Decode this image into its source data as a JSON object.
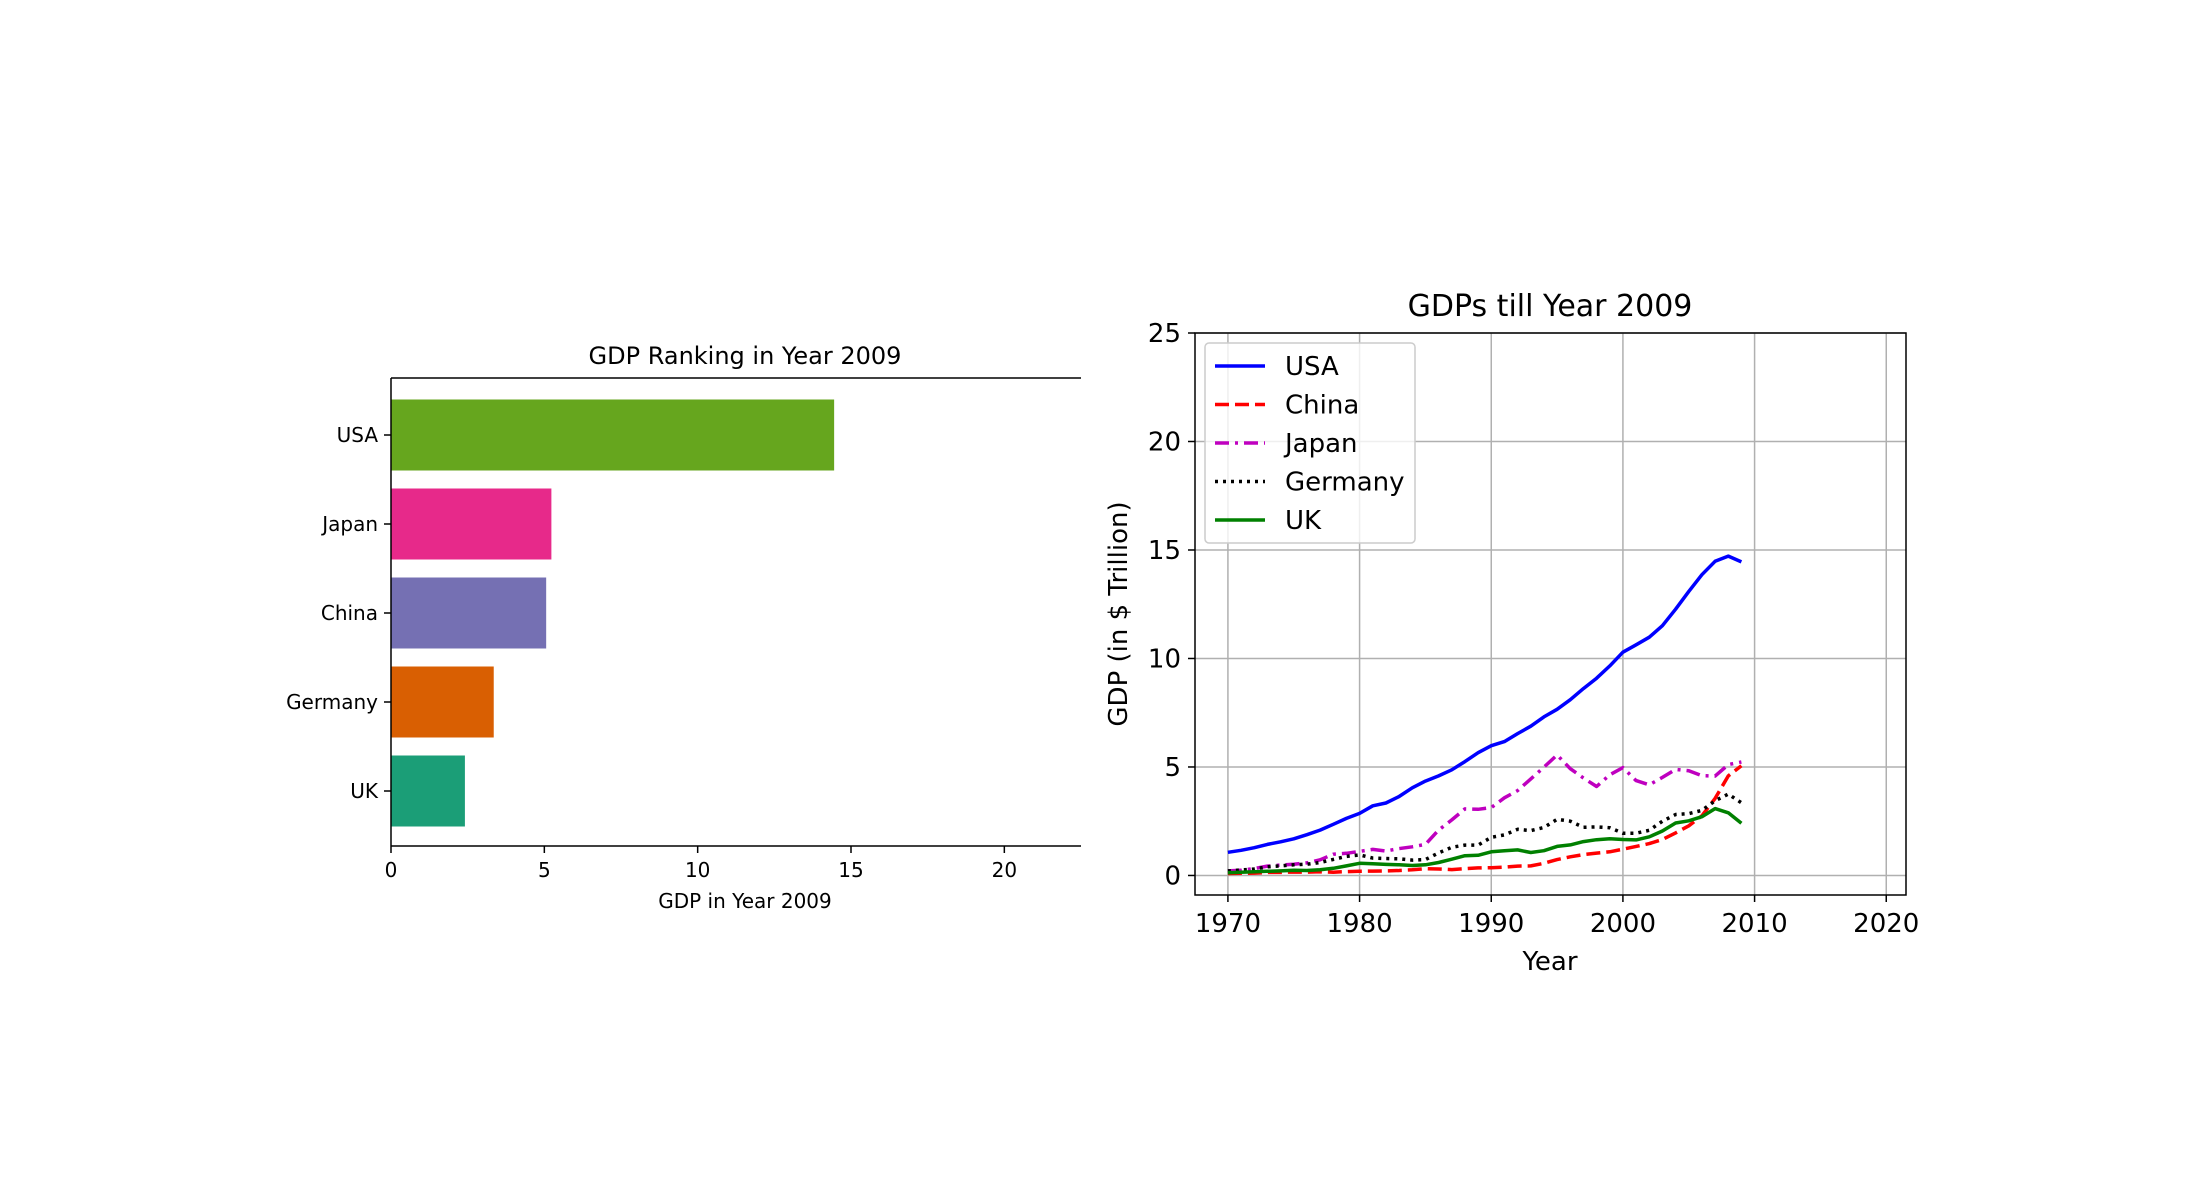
{
  "chart_data": [
    {
      "type": "bar",
      "orientation": "horizontal",
      "title": "GDP Ranking in Year 2009",
      "xlabel": "GDP in Year 2009",
      "ylabel": "",
      "categories": [
        "USA",
        "Japan",
        "China",
        "Germany",
        "UK"
      ],
      "values": [
        14.45,
        5.23,
        5.06,
        3.35,
        2.41
      ],
      "colors": [
        "#66a61e",
        "#e7298a",
        "#7570b3",
        "#d95f02",
        "#1b9e77"
      ],
      "xlim": [
        0,
        22.5
      ],
      "xticks": [
        "0",
        "5",
        "10",
        "15",
        "20"
      ],
      "grid": false
    },
    {
      "type": "line",
      "title": "GDPs till Year 2009",
      "xlabel": "Year",
      "ylabel": "GDP (in $ Trillion)",
      "xlim": [
        1967.5,
        2021.5
      ],
      "ylim": [
        -0.9,
        25
      ],
      "xticks": [
        "1970",
        "1980",
        "1990",
        "2000",
        "2010",
        "2020"
      ],
      "yticks": [
        "0",
        "5",
        "10",
        "15",
        "20",
        "25"
      ],
      "grid": true,
      "legend_position": "top-left",
      "x": [
        1970,
        1971,
        1972,
        1973,
        1974,
        1975,
        1976,
        1977,
        1978,
        1979,
        1980,
        1981,
        1982,
        1983,
        1984,
        1985,
        1986,
        1987,
        1988,
        1989,
        1990,
        1991,
        1992,
        1993,
        1994,
        1995,
        1996,
        1997,
        1998,
        1999,
        2000,
        2001,
        2002,
        2003,
        2004,
        2005,
        2006,
        2007,
        2008,
        2009
      ],
      "series": [
        {
          "name": "USA",
          "color": "#0000ff",
          "dash": "solid",
          "values": [
            1.07,
            1.16,
            1.28,
            1.43,
            1.55,
            1.69,
            1.88,
            2.09,
            2.36,
            2.63,
            2.86,
            3.21,
            3.34,
            3.64,
            4.04,
            4.35,
            4.59,
            4.87,
            5.25,
            5.66,
            5.98,
            6.17,
            6.54,
            6.88,
            7.31,
            7.66,
            8.1,
            8.61,
            9.09,
            9.66,
            10.29,
            10.63,
            10.98,
            11.51,
            12.27,
            13.09,
            13.86,
            14.48,
            14.72,
            14.45
          ]
        },
        {
          "name": "China",
          "color": "#ff0000",
          "dash": "dashed",
          "values": [
            0.09,
            0.1,
            0.11,
            0.14,
            0.14,
            0.16,
            0.15,
            0.17,
            0.15,
            0.18,
            0.19,
            0.2,
            0.21,
            0.23,
            0.26,
            0.31,
            0.3,
            0.27,
            0.31,
            0.35,
            0.36,
            0.38,
            0.43,
            0.44,
            0.56,
            0.73,
            0.86,
            0.96,
            1.03,
            1.09,
            1.21,
            1.34,
            1.47,
            1.66,
            1.96,
            2.29,
            2.75,
            3.55,
            4.59,
            5.06
          ]
        },
        {
          "name": "Japan",
          "color": "#bf00bf",
          "dash": "dashdot",
          "values": [
            0.21,
            0.24,
            0.32,
            0.43,
            0.48,
            0.52,
            0.58,
            0.72,
            0.98,
            1.02,
            1.11,
            1.2,
            1.13,
            1.24,
            1.32,
            1.43,
            2.09,
            2.56,
            3.07,
            3.05,
            3.13,
            3.58,
            3.91,
            4.45,
            4.99,
            5.55,
            4.92,
            4.49,
            4.1,
            4.64,
            4.97,
            4.37,
            4.18,
            4.52,
            4.89,
            4.83,
            4.6,
            4.58,
            5.11,
            5.23
          ]
        },
        {
          "name": "Germany",
          "color": "#000000",
          "dash": "dotted",
          "values": [
            0.21,
            0.25,
            0.3,
            0.4,
            0.44,
            0.49,
            0.52,
            0.6,
            0.74,
            0.88,
            0.95,
            0.8,
            0.78,
            0.77,
            0.71,
            0.73,
            1.04,
            1.3,
            1.4,
            1.4,
            1.76,
            1.87,
            2.13,
            2.07,
            2.21,
            2.59,
            2.5,
            2.22,
            2.24,
            2.2,
            1.95,
            1.95,
            2.08,
            2.5,
            2.81,
            2.85,
            3.0,
            3.44,
            3.75,
            3.35
          ]
        },
        {
          "name": "UK",
          "color": "#008000",
          "dash": "solid",
          "values": [
            0.13,
            0.15,
            0.17,
            0.19,
            0.21,
            0.24,
            0.23,
            0.26,
            0.33,
            0.44,
            0.56,
            0.54,
            0.51,
            0.49,
            0.46,
            0.49,
            0.6,
            0.75,
            0.91,
            0.93,
            1.09,
            1.14,
            1.18,
            1.06,
            1.14,
            1.34,
            1.41,
            1.56,
            1.65,
            1.69,
            1.66,
            1.64,
            1.78,
            2.05,
            2.42,
            2.52,
            2.71,
            3.08,
            2.89,
            2.41
          ]
        }
      ]
    }
  ]
}
